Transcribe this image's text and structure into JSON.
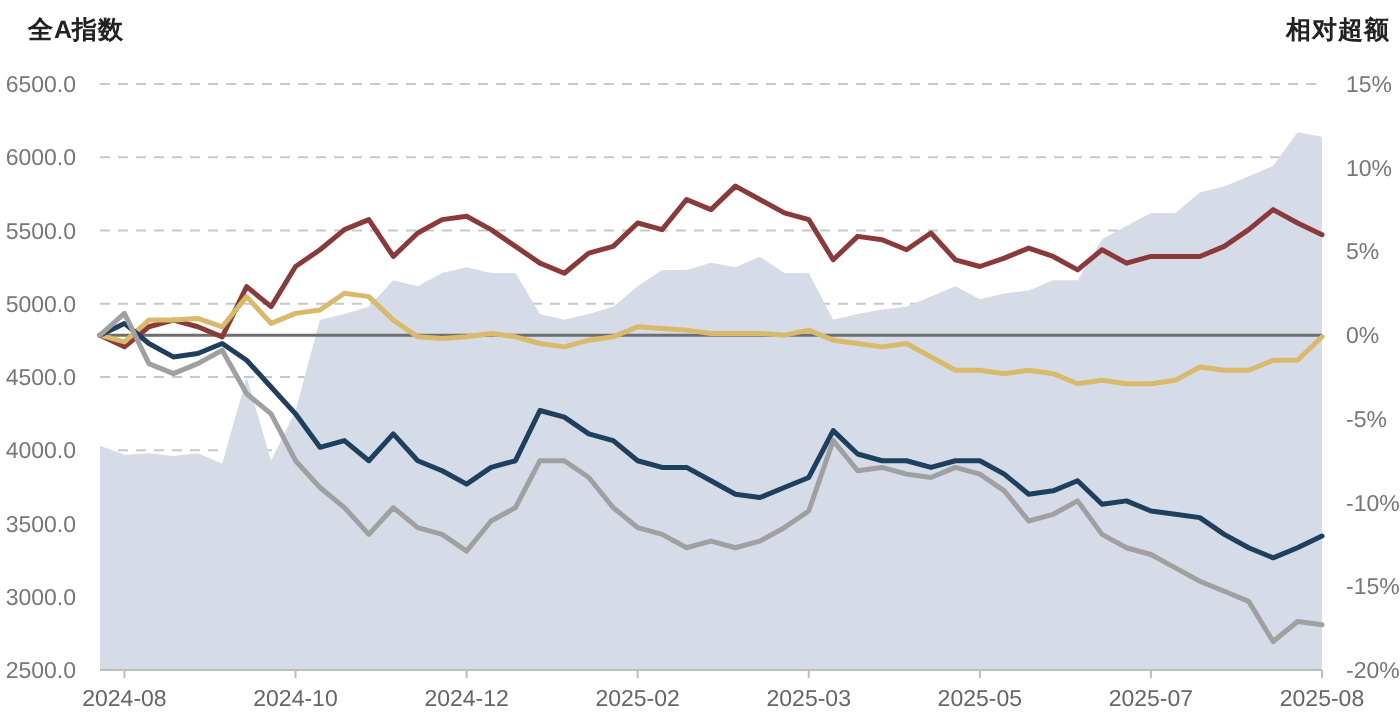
{
  "chart_data": {
    "type": "line",
    "ylabel": "全A指数",
    "y2label": "相对超额",
    "categories": [
      null,
      "2024-08",
      null,
      null,
      null,
      null,
      null,
      null,
      "2024-10",
      null,
      null,
      null,
      null,
      null,
      null,
      "2024-12",
      null,
      null,
      null,
      null,
      null,
      null,
      "2025-02",
      null,
      null,
      null,
      null,
      null,
      null,
      "2025-03",
      null,
      null,
      null,
      null,
      null,
      null,
      "2025-05",
      null,
      null,
      null,
      null,
      null,
      null,
      "2025-07",
      null,
      null,
      null,
      null,
      null,
      null,
      "2025-08"
    ],
    "ylim": [
      2500,
      6500
    ],
    "yticks": [
      {
        "value": 2500,
        "label": "2500.0"
      },
      {
        "value": 3000,
        "label": "3000.0"
      },
      {
        "value": 3500,
        "label": "3500.0"
      },
      {
        "value": 4000,
        "label": "4000.0"
      },
      {
        "value": 4500,
        "label": "4500.0"
      },
      {
        "value": 5000,
        "label": "5000.0"
      },
      {
        "value": 5500,
        "label": "5500.0"
      },
      {
        "value": 6000,
        "label": "6000.0"
      },
      {
        "value": 6500,
        "label": "6500.0"
      }
    ],
    "y2lim": [
      -20,
      15
    ],
    "y2ticks": [
      {
        "value": -20,
        "label": "-20%"
      },
      {
        "value": -15,
        "label": "-15%"
      },
      {
        "value": -10,
        "label": "-10%"
      },
      {
        "value": -5,
        "label": "-5%"
      },
      {
        "value": 0,
        "label": "0%"
      },
      {
        "value": 5,
        "label": "5%"
      },
      {
        "value": 10,
        "label": "10%"
      },
      {
        "value": 15,
        "label": "15%"
      }
    ],
    "grid": "y",
    "ref_lines": [
      {
        "axis": "y2",
        "value": 0,
        "label": null,
        "color": "#6e6e6e"
      }
    ],
    "series": [
      {
        "type": "area",
        "color": "#d5dce8",
        "values": [
          4030,
          3970,
          3980,
          3960,
          3980,
          3910,
          4500,
          3930,
          4270,
          4890,
          4930,
          4980,
          5160,
          5120,
          5210,
          5250,
          5210,
          5210,
          4930,
          4890,
          4930,
          4980,
          5120,
          5230,
          5230,
          5280,
          5250,
          5320,
          5210,
          5210,
          4890,
          4930,
          4960,
          4980,
          5050,
          5120,
          5030,
          5070,
          5090,
          5160,
          5160,
          5440,
          5530,
          5620,
          5620,
          5760,
          5800,
          5870,
          5940,
          6170,
          6140
        ]
      },
      {
        "type": "line",
        "axis": "y2",
        "color": "#8b3a3a",
        "values": [
          0,
          -0.7,
          0.5,
          0.9,
          0.5,
          -0.1,
          2.9,
          1.7,
          4.1,
          5.1,
          6.3,
          6.9,
          4.7,
          6.1,
          6.9,
          7.1,
          6.3,
          5.3,
          4.3,
          3.7,
          4.9,
          5.3,
          6.7,
          6.3,
          8.1,
          7.5,
          8.9,
          8.1,
          7.3,
          6.9,
          4.5,
          5.9,
          5.7,
          5.1,
          6.1,
          4.5,
          4.1,
          4.6,
          5.2,
          4.7,
          3.9,
          5.1,
          4.3,
          4.7,
          4.7,
          4.7,
          5.3,
          6.3,
          7.5,
          6.7,
          6.0
        ]
      },
      {
        "type": "line",
        "axis": "y2",
        "color": "#d9b96a",
        "values": [
          0,
          -0.4,
          0.9,
          0.9,
          1.0,
          0.5,
          2.3,
          0.7,
          1.3,
          1.5,
          2.5,
          2.3,
          0.9,
          -0.1,
          -0.2,
          -0.1,
          0.1,
          -0.1,
          -0.5,
          -0.7,
          -0.3,
          -0.1,
          0.5,
          0.4,
          0.3,
          0.1,
          0.1,
          0.1,
          0,
          0.3,
          -0.3,
          -0.5,
          -0.7,
          -0.5,
          -1.3,
          -2.1,
          -2.1,
          -2.3,
          -2.1,
          -2.3,
          -2.9,
          -2.7,
          -2.9,
          -2.9,
          -2.7,
          -1.9,
          -2.1,
          -2.1,
          -1.5,
          -1.5,
          -0.1
        ]
      },
      {
        "type": "line",
        "axis": "y2",
        "color": "#1f3f5f",
        "values": [
          0,
          0.7,
          -0.5,
          -1.3,
          -1.1,
          -0.5,
          -1.5,
          -3.1,
          -4.7,
          -6.7,
          -6.3,
          -7.5,
          -5.9,
          -7.5,
          -8.1,
          -8.9,
          -7.9,
          -7.5,
          -4.5,
          -4.9,
          -5.9,
          -6.3,
          -7.5,
          -7.9,
          -7.9,
          -8.7,
          -9.5,
          -9.7,
          -9.1,
          -8.5,
          -5.7,
          -7.1,
          -7.5,
          -7.5,
          -7.9,
          -7.5,
          -7.5,
          -8.3,
          -9.5,
          -9.3,
          -8.7,
          -10.1,
          -9.9,
          -10.5,
          -10.7,
          -10.9,
          -11.9,
          -12.7,
          -13.3,
          -12.7,
          -12.0
        ]
      },
      {
        "type": "line",
        "axis": "y2",
        "color": "#a0a0a0",
        "values": [
          0,
          1.3,
          -1.7,
          -2.3,
          -1.7,
          -0.9,
          -3.5,
          -4.7,
          -7.5,
          -9.1,
          -10.3,
          -11.9,
          -10.3,
          -11.5,
          -11.9,
          -12.9,
          -11.1,
          -10.3,
          -7.5,
          -7.5,
          -8.5,
          -10.3,
          -11.5,
          -11.9,
          -12.7,
          -12.3,
          -12.7,
          -12.3,
          -11.5,
          -10.5,
          -6.3,
          -8.1,
          -7.9,
          -8.3,
          -8.5,
          -7.9,
          -8.3,
          -9.3,
          -11.1,
          -10.7,
          -9.9,
          -11.9,
          -12.7,
          -13.1,
          -13.9,
          -14.7,
          -15.3,
          -15.9,
          -18.3,
          -17.1,
          -17.3
        ]
      }
    ]
  }
}
